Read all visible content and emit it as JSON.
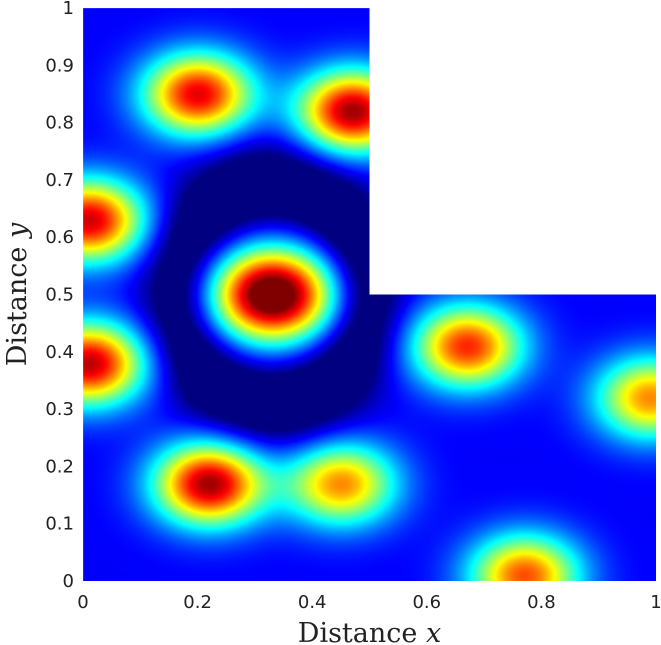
{
  "chart_data": {
    "type": "heatmap",
    "title": "",
    "xlabel": "Distance",
    "xlabel_var": "x",
    "ylabel": "Distance",
    "ylabel_var": "y",
    "xlim": [
      0,
      1
    ],
    "ylim": [
      0,
      1
    ],
    "x_ticks": [
      "0",
      "0.2",
      "0.4",
      "0.6",
      "0.8",
      "1"
    ],
    "y_ticks": [
      "0",
      "0.1",
      "0.2",
      "0.3",
      "0.4",
      "0.5",
      "0.6",
      "0.7",
      "0.8",
      "0.9",
      "1"
    ],
    "colormap": "jet",
    "domain": "L-shaped: [0,1]x[0,0.5] union [0,0.5]x[0.5,1]",
    "peaks": [
      {
        "x": 0.33,
        "y": 0.5,
        "level": 1.0
      },
      {
        "x": 0.2,
        "y": 0.85,
        "level": 0.78
      },
      {
        "x": 0.47,
        "y": 0.82,
        "level": 0.85
      },
      {
        "x": 0.01,
        "y": 0.63,
        "level": 0.8
      },
      {
        "x": 0.01,
        "y": 0.38,
        "level": 0.82
      },
      {
        "x": 0.22,
        "y": 0.17,
        "level": 0.85
      },
      {
        "x": 0.45,
        "y": 0.17,
        "level": 0.62
      },
      {
        "x": 0.67,
        "y": 0.41,
        "level": 0.72
      },
      {
        "x": 0.77,
        "y": 0.01,
        "level": 0.68
      },
      {
        "x": 0.99,
        "y": 0.32,
        "level": 0.62
      }
    ]
  }
}
